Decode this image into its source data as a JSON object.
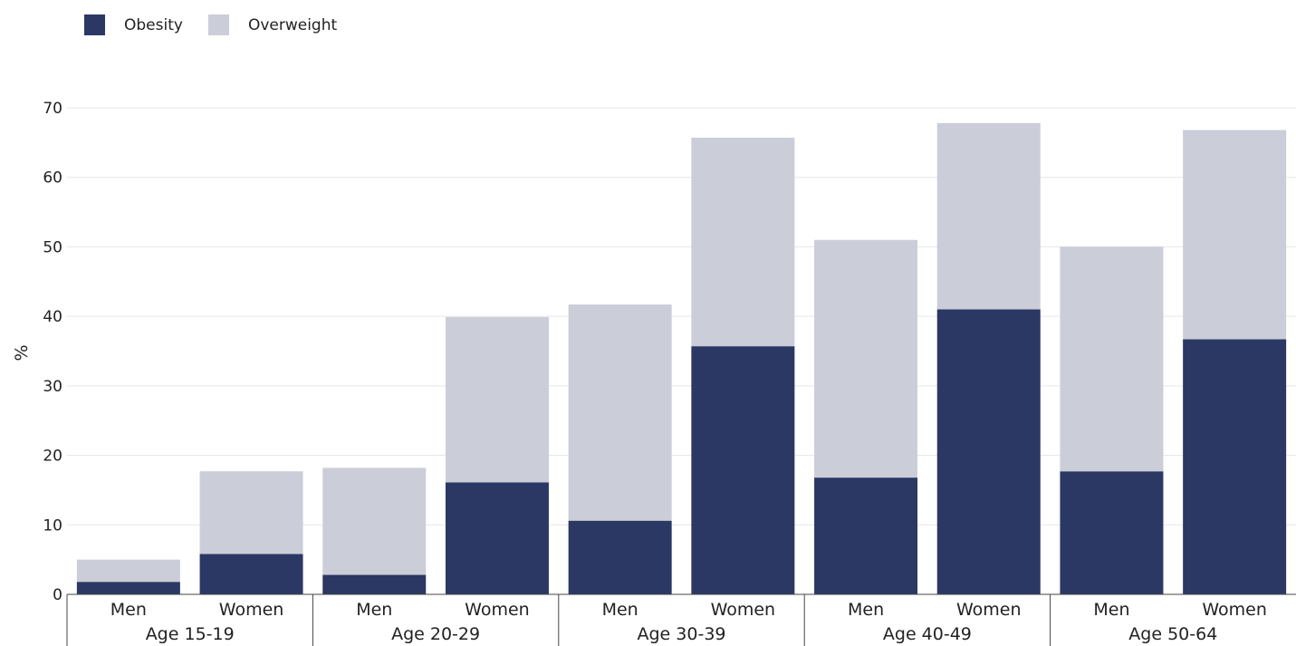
{
  "chart_data": {
    "type": "bar",
    "stacked": true,
    "ylabel": "%",
    "ylim": [
      0,
      70
    ],
    "yticks": [
      0,
      10,
      20,
      30,
      40,
      50,
      60,
      70
    ],
    "grid": true,
    "legend_position": "top-left",
    "groups": [
      "Age 15-19",
      "Age 20-29",
      "Age 30-39",
      "Age 40-49",
      "Age 50-64"
    ],
    "subcategories": [
      "Men",
      "Women"
    ],
    "categories": [
      "Men",
      "Women",
      "Men",
      "Women",
      "Men",
      "Women",
      "Men",
      "Women",
      "Men",
      "Women"
    ],
    "series": [
      {
        "name": "Obesity",
        "color": "#2b3864",
        "values": [
          1.8,
          5.8,
          2.8,
          16.1,
          10.6,
          35.7,
          16.8,
          41.0,
          17.7,
          36.7
        ]
      },
      {
        "name": "Overweight",
        "color": "#cbcdd8",
        "values": [
          3.2,
          11.9,
          15.4,
          23.8,
          31.1,
          30.0,
          34.2,
          26.8,
          32.3,
          30.1
        ]
      }
    ]
  }
}
